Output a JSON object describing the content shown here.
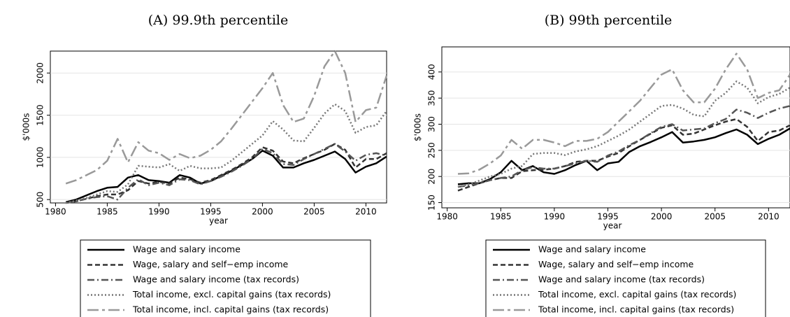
{
  "chart_data": [
    {
      "type": "line",
      "title": "(A) 99.9th percentile",
      "x_label": "year",
      "y_label": "$'000s",
      "x": [
        1981,
        1982,
        1983,
        1984,
        1985,
        1986,
        1987,
        1988,
        1989,
        1990,
        1991,
        1992,
        1993,
        1994,
        1995,
        1996,
        1997,
        1998,
        1999,
        2000,
        2001,
        2002,
        2003,
        2004,
        2005,
        2006,
        2007,
        2008,
        2009,
        2010,
        2011,
        2012
      ],
      "xlim": [
        1979.5,
        2012
      ],
      "xticks": [
        1980,
        1985,
        1990,
        1995,
        2000,
        2005,
        2010
      ],
      "ylim": [
        460,
        2260
      ],
      "yticks": [
        500,
        1000,
        1500,
        2000
      ],
      "grid": true,
      "series": [
        {
          "name": "Wage and salary income",
          "color": "#000000",
          "dash": "none",
          "width": 2.5,
          "values": [
            470,
            500,
            550,
            600,
            640,
            650,
            760,
            790,
            730,
            720,
            700,
            790,
            760,
            690,
            720,
            780,
            840,
            910,
            980,
            1080,
            1020,
            880,
            880,
            930,
            970,
            1020,
            1070,
            980,
            820,
            890,
            930,
            1010
          ]
        },
        {
          "name": "Wage, salary and self−emp income",
          "color": "#333333",
          "dash": "7,4",
          "width": 2.5,
          "values": [
            460,
            480,
            510,
            540,
            560,
            560,
            610,
            720,
            690,
            710,
            690,
            760,
            740,
            700,
            730,
            790,
            850,
            920,
            1000,
            1120,
            1080,
            950,
            930,
            990,
            1040,
            1090,
            1160,
            1090,
            880,
            980,
            980,
            1050
          ]
        },
        {
          "name": "Wage and salary income (tax records)",
          "color": "#555555",
          "dash": "10,4,2,4",
          "width": 2.5,
          "values": [
            460,
            480,
            510,
            530,
            540,
            500,
            640,
            740,
            670,
            700,
            670,
            740,
            730,
            680,
            720,
            770,
            830,
            900,
            980,
            1100,
            1050,
            920,
            910,
            980,
            1040,
            1100,
            1160,
            1070,
            960,
            1030,
            1050,
            1020
          ]
        },
        {
          "name": "Total income, excl. capital gains (tax records)",
          "color": "#777777",
          "dash": "2,3",
          "width": 2.5,
          "values": [
            460,
            490,
            520,
            560,
            600,
            590,
            680,
            900,
            890,
            880,
            920,
            840,
            900,
            870,
            870,
            880,
            960,
            1060,
            1160,
            1260,
            1430,
            1330,
            1200,
            1190,
            1350,
            1520,
            1630,
            1550,
            1290,
            1360,
            1380,
            1550
          ]
        },
        {
          "name": "Total income, incl. capital gains (tax records)",
          "color": "#999999",
          "dash": "16,5,4,5",
          "width": 2.5,
          "values": [
            690,
            730,
            790,
            850,
            960,
            1220,
            940,
            1180,
            1080,
            1050,
            970,
            1040,
            990,
            1020,
            1090,
            1190,
            1340,
            1500,
            1660,
            1820,
            2000,
            1620,
            1420,
            1460,
            1730,
            2080,
            2260,
            2000,
            1420,
            1560,
            1590,
            1970
          ]
        }
      ]
    },
    {
      "type": "line",
      "title": "(B) 99th percentile",
      "x_label": "year",
      "y_label": "$'000s",
      "x": [
        1981,
        1982,
        1983,
        1984,
        1985,
        1986,
        1987,
        1988,
        1989,
        1990,
        1991,
        1992,
        1993,
        1994,
        1995,
        1996,
        1997,
        1998,
        1999,
        2000,
        2001,
        2002,
        2003,
        2004,
        2005,
        2006,
        2007,
        2008,
        2009,
        2010,
        2011,
        2012
      ],
      "xlim": [
        1979.5,
        2012
      ],
      "xticks": [
        1980,
        1985,
        1990,
        1995,
        2000,
        2005,
        2010
      ],
      "ylim": [
        140,
        448
      ],
      "yticks": [
        150,
        200,
        250,
        300,
        350,
        400
      ],
      "grid": true,
      "series": [
        {
          "name": "Wage and salary income",
          "color": "#000000",
          "dash": "none",
          "width": 2.5,
          "values": [
            185,
            187,
            187,
            195,
            208,
            230,
            212,
            220,
            208,
            205,
            212,
            222,
            230,
            212,
            225,
            228,
            247,
            258,
            266,
            275,
            285,
            265,
            267,
            270,
            275,
            283,
            290,
            280,
            262,
            272,
            280,
            292
          ]
        },
        {
          "name": "Wage, salary and self−emp income",
          "color": "#333333",
          "dash": "7,4",
          "width": 2.5,
          "values": [
            173,
            180,
            187,
            193,
            197,
            197,
            210,
            212,
            213,
            215,
            220,
            228,
            230,
            230,
            238,
            245,
            258,
            270,
            282,
            293,
            298,
            280,
            282,
            290,
            298,
            305,
            310,
            295,
            268,
            285,
            288,
            298
          ]
        },
        {
          "name": "Wage and salary income (tax records)",
          "color": "#555555",
          "dash": "10,4,2,4",
          "width": 2.5,
          "values": [
            180,
            183,
            187,
            193,
            197,
            200,
            212,
            218,
            215,
            215,
            220,
            225,
            230,
            228,
            240,
            248,
            260,
            270,
            283,
            295,
            300,
            288,
            290,
            292,
            302,
            310,
            328,
            322,
            312,
            322,
            330,
            335
          ]
        },
        {
          "name": "Total income, excl. capital gains (tax records)",
          "color": "#777777",
          "dash": "2,3",
          "width": 2.5,
          "values": [
            180,
            185,
            192,
            200,
            205,
            215,
            220,
            243,
            245,
            245,
            241,
            248,
            252,
            258,
            268,
            278,
            290,
            305,
            320,
            335,
            337,
            330,
            318,
            315,
            345,
            360,
            382,
            370,
            340,
            352,
            358,
            370
          ]
        },
        {
          "name": "Total income, incl. capital gains (tax records)",
          "color": "#999999",
          "dash": "16,5,4,5",
          "width": 2.5,
          "values": [
            205,
            206,
            213,
            225,
            240,
            270,
            253,
            270,
            270,
            265,
            258,
            268,
            268,
            272,
            285,
            305,
            325,
            345,
            370,
            395,
            405,
            365,
            342,
            342,
            368,
            405,
            435,
            405,
            350,
            360,
            365,
            395
          ]
        }
      ]
    }
  ]
}
